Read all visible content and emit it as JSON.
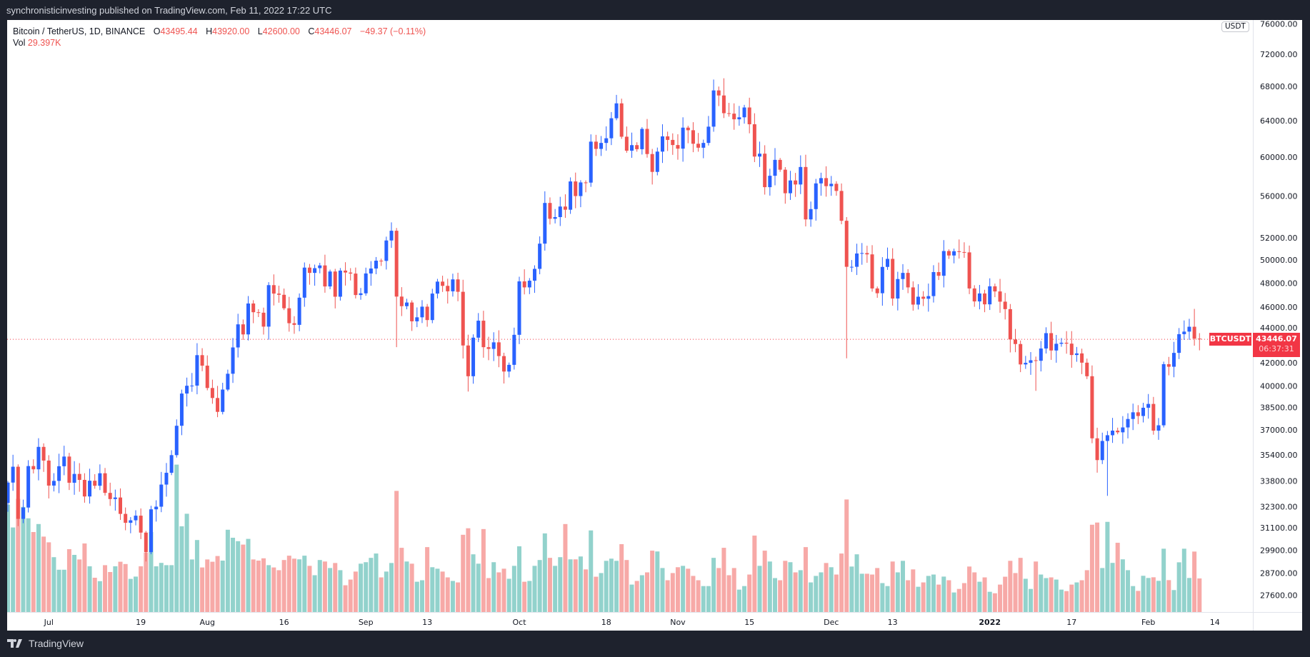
{
  "header": {
    "published": "synchronisticinvesting published on TradingView.com, Feb 11, 2022 17:22 UTC"
  },
  "legend": {
    "symbol": "Bitcoin / TetherUS, 1D, BINANCE",
    "o_label": "O",
    "o": "43495.44",
    "h_label": "H",
    "h": "43920.00",
    "l_label": "L",
    "l": "42600.00",
    "c_label": "C",
    "c": "43446.07",
    "change": "−49.37 (−0.11%)",
    "vol_label": "Vol",
    "vol": "29.397K"
  },
  "price_axis": {
    "currency": "USDT",
    "scale": "log",
    "labels": [
      "76000.00",
      "72000.00",
      "68000.00",
      "64000.00",
      "60000.00",
      "56000.00",
      "52000.00",
      "50000.00",
      "48000.00",
      "46000.00",
      "44000.00",
      "42000.00",
      "40000.00",
      "38500.00",
      "37000.00",
      "35400.00",
      "33800.00",
      "32300.00",
      "31100.00",
      "29900.00",
      "28700.00",
      "27600.00"
    ]
  },
  "current_price": {
    "symbol": "BTCUSDT",
    "price": "43446.07",
    "countdown": "06:37:31",
    "color": "#f23645"
  },
  "time_axis": {
    "ticks": [
      {
        "label": "Jul",
        "date": "2021-07-01"
      },
      {
        "label": "19",
        "date": "2021-07-19"
      },
      {
        "label": "Aug",
        "date": "2021-08-01"
      },
      {
        "label": "16",
        "date": "2021-08-16"
      },
      {
        "label": "Sep",
        "date": "2021-09-01"
      },
      {
        "label": "13",
        "date": "2021-09-13"
      },
      {
        "label": "Oct",
        "date": "2021-10-01"
      },
      {
        "label": "18",
        "date": "2021-10-18"
      },
      {
        "label": "Nov",
        "date": "2021-11-01"
      },
      {
        "label": "15",
        "date": "2021-11-15"
      },
      {
        "label": "Dec",
        "date": "2021-12-01"
      },
      {
        "label": "13",
        "date": "2021-12-13"
      },
      {
        "label": "2022",
        "date": "2022-01-01",
        "bold": true
      },
      {
        "label": "17",
        "date": "2022-01-17"
      },
      {
        "label": "Feb",
        "date": "2022-02-01"
      },
      {
        "label": "14",
        "date": "2022-02-14"
      }
    ]
  },
  "colors": {
    "up": "#2962ff",
    "down": "#ef5350",
    "vol_up": "#92d2cc",
    "vol_down": "#f7a9a7"
  },
  "chart_data": {
    "type": "candlestick",
    "interval": "1D",
    "first_open": 32500,
    "close": [
      33700,
      34660,
      31600,
      32240,
      34700,
      34500,
      35900,
      35040,
      33520,
      33800,
      34690,
      35290,
      33690,
      34220,
      33860,
      32880,
      33810,
      33510,
      34260,
      33090,
      32730,
      32820,
      31880,
      31380,
      31520,
      31780,
      30840,
      29790,
      32140,
      32290,
      33580,
      34290,
      35380,
      37270,
      39460,
      40010,
      40020,
      42240,
      41460,
      39850,
      39150,
      38200,
      39740,
      40870,
      42820,
      44610,
      43820,
      46290,
      45580,
      45540,
      44430,
      47820,
      47110,
      47010,
      45900,
      44700,
      44570,
      46770,
      49330,
      48870,
      49280,
      49520,
      47710,
      48990,
      46850,
      49070,
      48900,
      48810,
      46990,
      47130,
      48820,
      49250,
      49940,
      49920,
      51760,
      52660,
      46860,
      46070,
      46370,
      44850,
      45170,
      46030,
      44950,
      47110,
      48120,
      47760,
      47300,
      48310,
      47260,
      42970,
      40690,
      43570,
      44900,
      42840,
      42710,
      43210,
      42170,
      41030,
      41520,
      43790,
      48140,
      47630,
      48200,
      49220,
      51470,
      55320,
      53790,
      53950,
      54970,
      54660,
      57470,
      56000,
      57370,
      57350,
      61670,
      60880,
      61530,
      62040,
      64280,
      66000,
      62210,
      60690,
      61290,
      60850,
      63080,
      60330,
      58450,
      60590,
      62250,
      61860,
      61300,
      60910,
      63220,
      62930,
      61440,
      61010,
      61530,
      63330,
      67530,
      66930,
      64860,
      64810,
      64160,
      64390,
      65520,
      63600,
      60060,
      60370,
      56890,
      58050,
      59710,
      58680,
      56280,
      57570,
      57160,
      58960,
      53730,
      54720,
      57270,
      57810,
      56990,
      57230,
      56510,
      53600,
      49400,
      49400,
      50580,
      50620,
      50500,
      47540,
      47140,
      49390,
      50100,
      46700,
      48340,
      48870,
      47630,
      46200,
      46850,
      46680,
      46900,
      48940,
      48620,
      50800,
      50400,
      50780,
      50710,
      50680,
      47540,
      46460,
      47120,
      46220,
      47720,
      47290,
      46440,
      45830,
      43430,
      43080,
      41550,
      41670,
      41860,
      41820,
      42740,
      43920,
      42590,
      43100,
      43180,
      43110,
      42250,
      42370,
      41680,
      40690,
      36450,
      35070,
      36280,
      36650,
      36950,
      36840,
      37160,
      37720,
      38170,
      37920,
      38480,
      38740,
      36950,
      37300,
      41570,
      41380,
      42410,
      43840,
      44040,
      44420,
      43495.44,
      43446.07
    ],
    "volume_k": [
      94,
      74,
      99,
      92,
      82,
      70,
      77,
      66,
      61,
      48,
      37,
      37,
      55,
      50,
      46,
      60,
      40,
      30,
      27,
      41,
      35,
      40,
      44,
      42,
      29,
      31,
      40,
      52,
      70,
      40,
      43,
      41,
      41,
      129,
      75,
      86,
      46,
      63,
      39,
      46,
      44,
      49,
      45,
      72,
      65,
      62,
      59,
      64,
      46,
      45,
      47,
      41,
      39,
      36.6,
      45.5,
      49.3,
      46.7,
      46.1,
      49.3,
      40.4,
      32.2,
      45.5,
      44.2,
      38.5,
      42.9,
      36.6,
      23.4,
      28.4,
      35.4,
      42.3,
      43.6,
      47.4,
      51.2,
      30.3,
      35.4,
      42.9,
      106,
      56.2,
      44.2,
      42.3,
      26.5,
      27.8,
      56.8,
      39.2,
      37.9,
      35.4,
      30.3,
      27.2,
      25.9,
      67.6,
      73.3,
      50.5,
      42.3,
      72.6,
      29.7,
      43.6,
      34.7,
      37.9,
      29.1,
      40.4,
      57.5,
      26.5,
      27.2,
      40.4,
      45.5,
      68.8,
      47.4,
      40.4,
      48,
      77,
      46.1,
      46.1,
      48.6,
      37.3,
      71.4,
      30.9,
      34.1,
      44.8,
      46.7,
      44.8,
      59.4,
      45.5,
      24,
      27.2,
      32.2,
      34.7,
      53.7,
      53,
      38.5,
      27.8,
      34.1,
      39.2,
      40.4,
      37.9,
      31.6,
      27.8,
      22.7,
      22.7,
      47.4,
      38.5,
      56.2,
      32.2,
      38.5,
      19.6,
      22.7,
      32.8,
      66.9,
      40.4,
      53.7,
      44.2,
      29.7,
      27.8,
      44.8,
      43.6,
      34.7,
      36.6,
      56.8,
      25.9,
      31.6,
      34.7,
      42.9,
      39.2,
      32.8,
      51.2,
      98.5,
      39.8,
      50.5,
      33.5,
      33.5,
      32.8,
      38.5,
      25.3,
      22.7,
      44.2,
      34.7,
      44.8,
      27.8,
      37.3,
      22.1,
      25.9,
      31.6,
      32.8,
      24,
      31,
      27.8,
      17.1,
      20.2,
      25.3,
      39.8,
      34.7,
      26.5,
      30.3,
      17.7,
      16.4,
      24,
      30.9,
      44.8,
      34.1,
      47.4,
      29.1,
      20.2,
      44.2,
      32.8,
      29.7,
      30.3,
      28.4,
      19.6,
      18.3,
      24,
      25.9,
      27.8,
      36.6,
      76.4,
      78.3,
      38.5,
      78.9,
      43,
      60.6,
      46.1,
      36.6,
      22.7,
      18.5,
      31.7,
      29.8,
      30.4,
      27.3,
      55.4,
      27.9,
      19.2,
      43.5,
      55.4,
      29.8,
      52.9,
      29.397
    ],
    "extremes": {
      "2021-07-20": {
        "low": 29300
      },
      "2021-09-07": {
        "high": 52920,
        "low": 42843
      },
      "2021-09-21": {
        "low": 39600
      },
      "2021-10-20": {
        "high": 67000
      },
      "2021-11-10": {
        "high": 69000
      },
      "2021-12-04": {
        "low": 42000
      },
      "2022-01-10": {
        "low": 39650
      },
      "2022-01-24": {
        "low": 32917
      },
      "2022-02-10": {
        "high": 45850
      },
      "2022-02-11": {
        "high": 43920,
        "low": 42600
      }
    }
  },
  "footer": {
    "brand": "TradingView"
  }
}
